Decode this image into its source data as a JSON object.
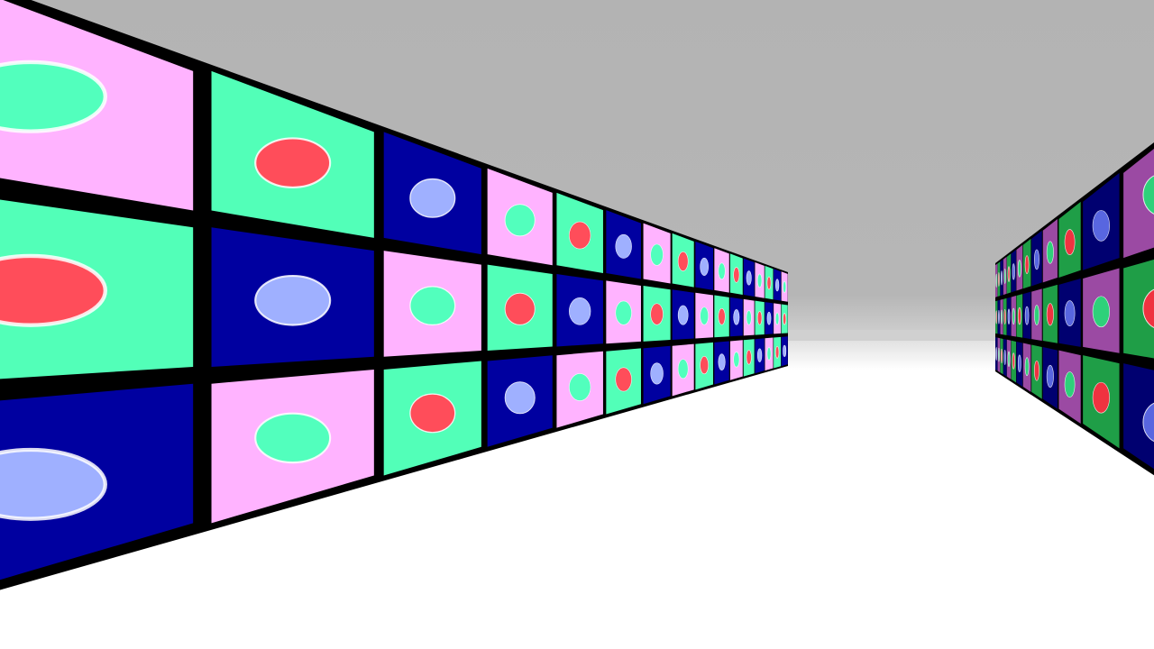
{
  "scene": {
    "type": "3d-corridor",
    "view": "first-person",
    "ceiling_color": "#b3b3b3",
    "floor_color": "#ffffff",
    "horizon_fog_color": "#e6e6e6",
    "grout_color": "#000000"
  },
  "tile_palette": {
    "pink": {
      "face": "#ffb3ff",
      "dot": "#52ffbd"
    },
    "green": {
      "face": "#52ffb8",
      "dot": "#ff4d5a"
    },
    "navy": {
      "face": "#0000a0",
      "dot": "#9fb0ff"
    }
  },
  "left_wall": {
    "rows": 3,
    "row0": [
      "pink",
      "green",
      "navy",
      "pink",
      "green",
      "navy",
      "pink",
      "green",
      "navy",
      "pink",
      "green",
      "navy",
      "pink",
      "green",
      "navy",
      "pink"
    ],
    "row1": [
      "green",
      "navy",
      "pink",
      "green",
      "navy",
      "pink",
      "green",
      "navy",
      "pink",
      "green",
      "navy",
      "pink",
      "green",
      "navy",
      "pink",
      "green"
    ],
    "row2": [
      "navy",
      "pink",
      "green",
      "navy",
      "pink",
      "green",
      "navy",
      "pink",
      "green",
      "navy",
      "pink",
      "green",
      "navy",
      "pink",
      "green",
      "navy"
    ]
  },
  "right_wall_palette": {
    "purple": {
      "face": "#9b4aa3",
      "dot": "#2ed17a"
    },
    "darkgreen": {
      "face": "#1f9e47",
      "dot": "#ef3340"
    },
    "darknavy": {
      "face": "#000070",
      "dot": "#5866e0"
    }
  },
  "right_wall": {
    "rows": 3,
    "row0": [
      "purple",
      "darknavy",
      "darkgreen",
      "purple",
      "darknavy",
      "darkgreen",
      "purple",
      "darknavy",
      "darkgreen",
      "purple",
      "darknavy",
      "darkgreen",
      "purple"
    ],
    "row1": [
      "darkgreen",
      "purple",
      "darknavy",
      "darkgreen",
      "purple",
      "darknavy",
      "darkgreen",
      "purple",
      "darknavy",
      "darkgreen",
      "purple",
      "darknavy",
      "darkgreen"
    ],
    "row2": [
      "darknavy",
      "darkgreen",
      "purple",
      "darknavy",
      "darkgreen",
      "purple",
      "darknavy",
      "darkgreen",
      "purple",
      "darknavy",
      "darkgreen",
      "purple",
      "darknavy"
    ]
  }
}
